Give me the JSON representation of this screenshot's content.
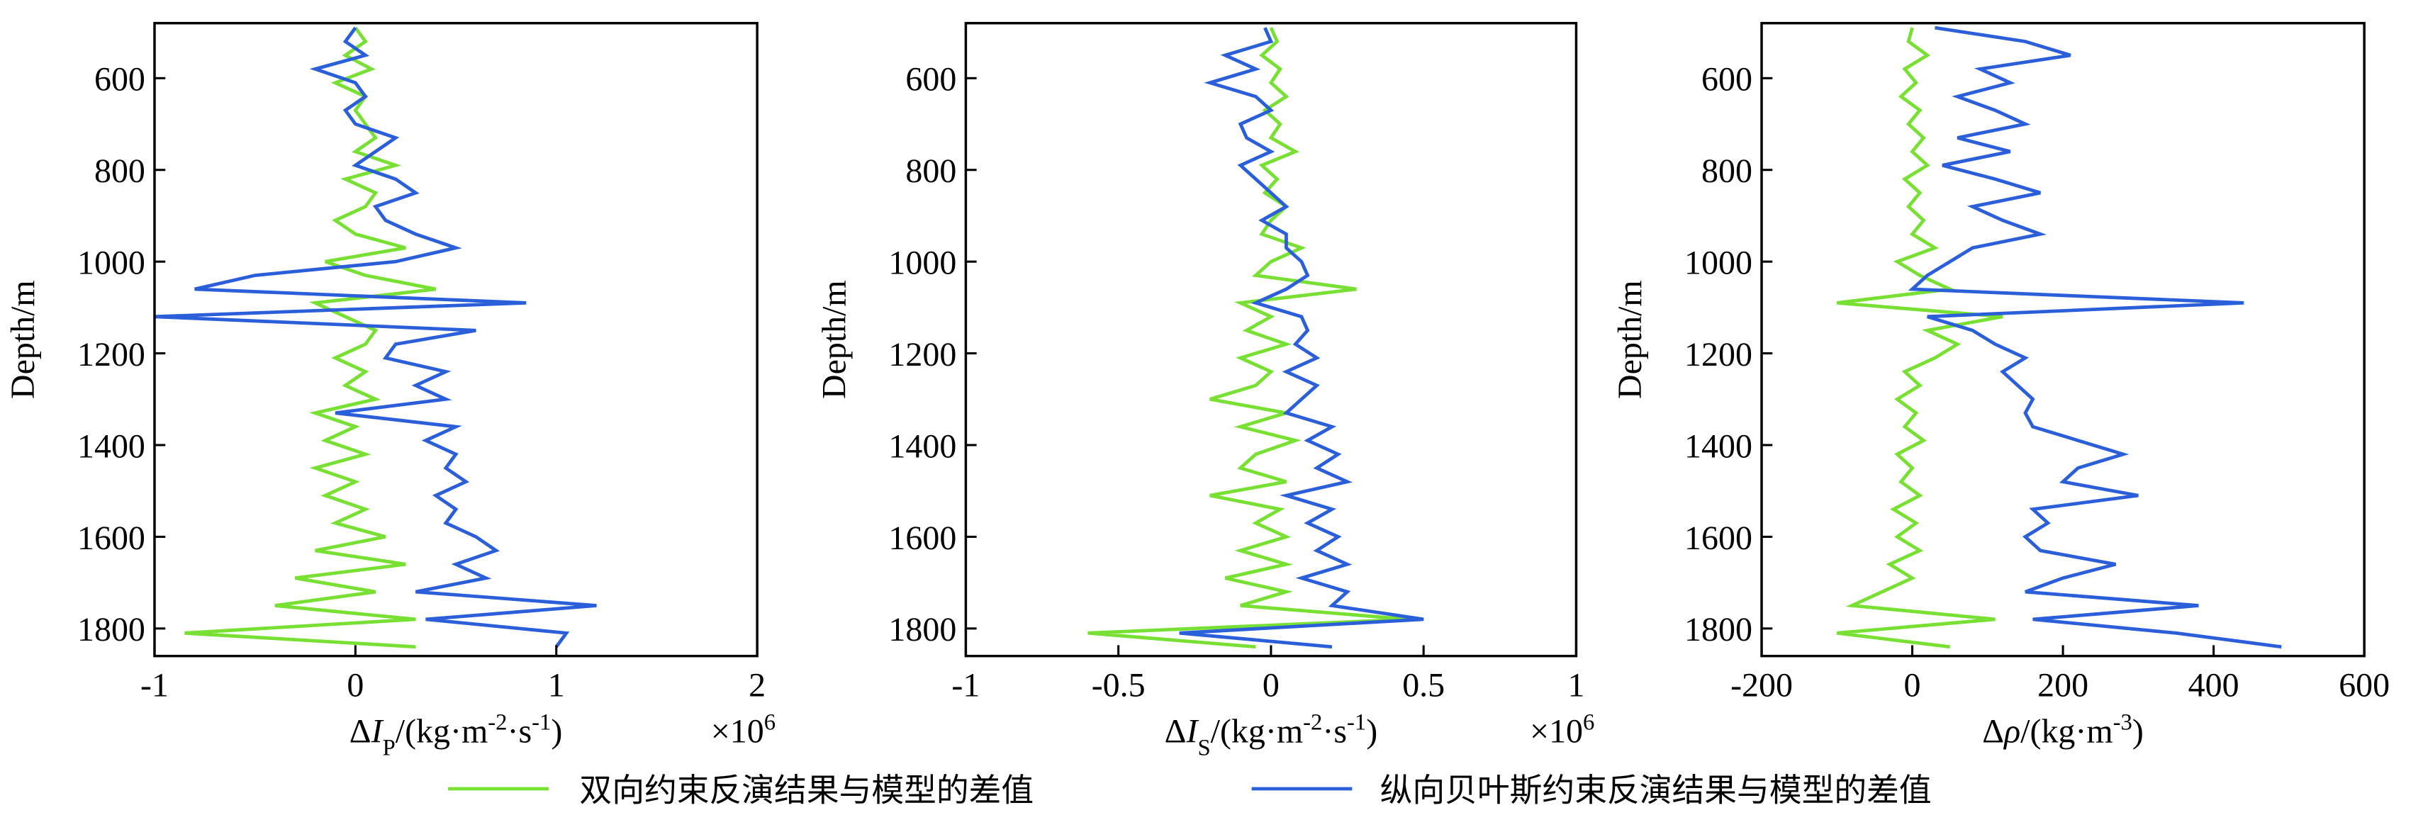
{
  "chart_data": [
    {
      "type": "line",
      "ylabel": "Depth/m",
      "xlabel_parts": [
        {
          "text": "Δ"
        },
        {
          "text": "I",
          "style": "italic"
        },
        {
          "text": "P",
          "style": "sub"
        },
        {
          "text": "/(kg·m"
        },
        {
          "text": "-2",
          "style": "sup"
        },
        {
          "text": "·s"
        },
        {
          "text": "-1",
          "style": "sup"
        },
        {
          "text": ")"
        }
      ],
      "x_multiplier_parts": [
        {
          "text": "×10"
        },
        {
          "text": "6",
          "style": "sup"
        }
      ],
      "xlim": [
        -1,
        2
      ],
      "xticks": [
        -1,
        0,
        1,
        2
      ],
      "ylim": [
        480,
        1860
      ],
      "yticks": [
        600,
        800,
        1000,
        1200,
        1400,
        1600,
        1800
      ],
      "y": [
        490,
        520,
        550,
        580,
        610,
        640,
        670,
        700,
        730,
        760,
        790,
        820,
        850,
        880,
        910,
        940,
        970,
        1000,
        1030,
        1060,
        1090,
        1120,
        1150,
        1180,
        1210,
        1240,
        1270,
        1300,
        1330,
        1360,
        1390,
        1420,
        1450,
        1480,
        1510,
        1540,
        1570,
        1600,
        1630,
        1660,
        1690,
        1720,
        1750,
        1780,
        1810,
        1840
      ],
      "series": [
        {
          "color": "#77e033",
          "values": [
            0,
            0.05,
            -0.05,
            0.08,
            -0.1,
            0.05,
            0,
            0.05,
            0.1,
            0,
            0.2,
            -0.05,
            0.1,
            0.05,
            -0.1,
            0,
            0.25,
            -0.15,
            0.05,
            0.4,
            -0.2,
            -0.05,
            0.1,
            0.05,
            -0.1,
            0.05,
            -0.05,
            0.1,
            -0.2,
            0,
            -0.15,
            0.05,
            -0.2,
            0,
            -0.15,
            0.05,
            -0.1,
            0.15,
            -0.2,
            0.25,
            -0.3,
            0.1,
            -0.4,
            0.3,
            -0.85,
            0.3
          ]
        },
        {
          "color": "#2b5fd9",
          "values": [
            0,
            -0.05,
            0.05,
            -0.2,
            0,
            0.05,
            -0.05,
            0,
            0.2,
            0.1,
            0,
            0.2,
            0.3,
            0.1,
            0.15,
            0.3,
            0.5,
            0.2,
            -0.5,
            -0.8,
            0.85,
            -1.0,
            0.6,
            0.2,
            0.15,
            0.45,
            0.3,
            0.45,
            -0.1,
            0.5,
            0.35,
            0.5,
            0.45,
            0.55,
            0.4,
            0.5,
            0.45,
            0.6,
            0.7,
            0.5,
            0.65,
            0.3,
            1.2,
            0.35,
            1.05,
            1.0
          ]
        }
      ]
    },
    {
      "type": "line",
      "ylabel": "Depth/m",
      "xlabel_parts": [
        {
          "text": "Δ"
        },
        {
          "text": "I",
          "style": "italic"
        },
        {
          "text": "S",
          "style": "sub"
        },
        {
          "text": "/(kg·m"
        },
        {
          "text": "-2",
          "style": "sup"
        },
        {
          "text": "·s"
        },
        {
          "text": "-1",
          "style": "sup"
        },
        {
          "text": ")"
        }
      ],
      "x_multiplier_parts": [
        {
          "text": "×10"
        },
        {
          "text": "6",
          "style": "sup"
        }
      ],
      "xlim": [
        -1,
        1
      ],
      "xticks": [
        -1,
        -0.5,
        0,
        0.5,
        1
      ],
      "ylim": [
        480,
        1860
      ],
      "yticks": [
        600,
        800,
        1000,
        1200,
        1400,
        1600,
        1800
      ],
      "y": [
        490,
        520,
        550,
        580,
        610,
        640,
        670,
        700,
        730,
        760,
        790,
        820,
        850,
        880,
        910,
        940,
        970,
        1000,
        1030,
        1060,
        1090,
        1120,
        1150,
        1180,
        1210,
        1240,
        1270,
        1300,
        1330,
        1360,
        1390,
        1420,
        1450,
        1480,
        1510,
        1540,
        1570,
        1600,
        1630,
        1660,
        1690,
        1720,
        1750,
        1780,
        1810,
        1840
      ],
      "series": [
        {
          "color": "#77e033",
          "values": [
            0,
            0.02,
            -0.03,
            0.03,
            0,
            0.05,
            -0.02,
            0.03,
            0,
            0.08,
            -0.03,
            0.02,
            -0.02,
            0.05,
            0,
            -0.03,
            0.1,
            0,
            -0.05,
            0.28,
            -0.1,
            0,
            -0.08,
            0.05,
            -0.1,
            0,
            -0.05,
            -0.2,
            0.05,
            -0.1,
            0.08,
            -0.05,
            -0.1,
            0.05,
            -0.2,
            0.03,
            -0.05,
            0.05,
            -0.1,
            0.05,
            -0.15,
            0.05,
            -0.1,
            0.45,
            -0.6,
            -0.05
          ]
        },
        {
          "color": "#2b5fd9",
          "values": [
            -0.02,
            0,
            -0.15,
            -0.05,
            -0.2,
            -0.05,
            0,
            -0.1,
            -0.08,
            0,
            -0.1,
            -0.05,
            0,
            0.05,
            -0.03,
            0.05,
            0.05,
            0.1,
            0.12,
            0.05,
            -0.05,
            0.1,
            0.12,
            0.08,
            0.15,
            0.05,
            0.15,
            0.1,
            0.05,
            0.2,
            0.12,
            0.22,
            0.15,
            0.25,
            0.05,
            0.2,
            0.12,
            0.22,
            0.15,
            0.25,
            0.1,
            0.25,
            0.2,
            0.5,
            -0.3,
            0.2
          ]
        }
      ]
    },
    {
      "type": "line",
      "ylabel": "Depth/m",
      "xlabel_parts": [
        {
          "text": "Δ"
        },
        {
          "text": "ρ",
          "style": "italic"
        },
        {
          "text": "/(kg·m"
        },
        {
          "text": "-3",
          "style": "sup"
        },
        {
          "text": ")"
        }
      ],
      "xlim": [
        -200,
        600
      ],
      "xticks": [
        -200,
        0,
        200,
        400,
        600
      ],
      "ylim": [
        480,
        1860
      ],
      "yticks": [
        600,
        800,
        1000,
        1200,
        1400,
        1600,
        1800
      ],
      "y": [
        490,
        520,
        550,
        580,
        610,
        640,
        670,
        700,
        730,
        760,
        790,
        820,
        850,
        880,
        910,
        940,
        970,
        1000,
        1030,
        1060,
        1090,
        1120,
        1150,
        1180,
        1210,
        1240,
        1270,
        1300,
        1330,
        1360,
        1390,
        1420,
        1450,
        1480,
        1510,
        1540,
        1570,
        1600,
        1630,
        1660,
        1690,
        1720,
        1750,
        1780,
        1810,
        1840
      ],
      "series": [
        {
          "color": "#77e033",
          "values": [
            0,
            -5,
            20,
            -10,
            5,
            -15,
            10,
            -5,
            15,
            0,
            20,
            -10,
            10,
            -5,
            15,
            0,
            30,
            -20,
            10,
            50,
            -100,
            120,
            20,
            60,
            30,
            -10,
            10,
            -20,
            5,
            -10,
            15,
            -20,
            0,
            -15,
            10,
            -25,
            5,
            -20,
            10,
            -30,
            0,
            -40,
            -80,
            110,
            -100,
            50
          ]
        },
        {
          "color": "#2b5fd9",
          "values": [
            30,
            150,
            210,
            90,
            130,
            60,
            110,
            150,
            60,
            130,
            40,
            110,
            170,
            80,
            120,
            170,
            80,
            50,
            20,
            0,
            440,
            20,
            80,
            110,
            150,
            120,
            140,
            160,
            150,
            160,
            220,
            280,
            220,
            200,
            300,
            160,
            180,
            150,
            170,
            270,
            200,
            150,
            380,
            160,
            350,
            490
          ]
        }
      ]
    }
  ],
  "legend": [
    {
      "name": "双向约束反演结果与模型的差值",
      "color": "#77e033"
    },
    {
      "name": "纵向贝叶斯约束反演结果与模型的差值",
      "color": "#2b5fd9"
    }
  ]
}
